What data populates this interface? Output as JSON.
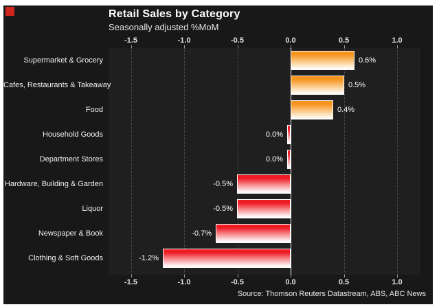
{
  "chart_data": {
    "type": "bar",
    "orientation": "horizontal",
    "title": "Retail Sales by Category",
    "subtitle": "Seasonally adjusted %MoM",
    "categories": [
      "Supermarket & Grocery",
      "Cafes, Restaurants & Takeaway",
      "Food",
      "Household Goods",
      "Department Stores",
      "Hardware, Building & Garden",
      "Liquor",
      "Newspaper & Book",
      "Clothing & Soft Goods"
    ],
    "values": [
      0.6,
      0.5,
      0.4,
      0.0,
      0.0,
      -0.5,
      -0.5,
      -0.7,
      -1.2
    ],
    "value_labels": [
      "0.6%",
      "0.5%",
      "0.4%",
      "0.0%",
      "0.0%",
      "-0.5%",
      "-0.5%",
      "-0.7%",
      "-1.2%"
    ],
    "x_ticks": [
      "-1.5",
      "-1.0",
      "-0.5",
      "0.0",
      "0.5",
      "1.0"
    ],
    "x_tick_values": [
      -1.5,
      -1.0,
      -0.5,
      0.0,
      0.5,
      1.0
    ],
    "xlim": [
      -1.71,
      1.22
    ],
    "grid": "dotted-vertical",
    "legend": "none",
    "source": "Source: Thomson Reuters Datastream, ABS, ABC News",
    "colors": {
      "positive_bar_top": "#f7941e",
      "negative_bar_top": "#ee1c25",
      "bar_fade_to": "#ffffff",
      "bar_border": "#fafafa",
      "page_margin": "#ffffff",
      "canvas_background": "#181818",
      "plot_background": "#1f1f1f",
      "zero_line": "#ffffff",
      "gridline": "#525252",
      "text": "#f0f0f0",
      "corner_marker": "#d0261d"
    }
  }
}
